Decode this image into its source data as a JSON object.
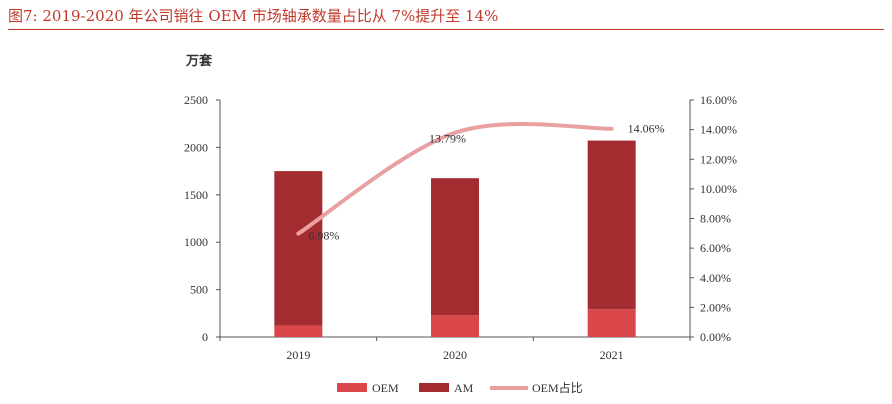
{
  "caption": "图7:   2019-2020 年公司销往 OEM 市场轴承数量占比从 7%提升至 14%",
  "unit_label": "万套",
  "colors": {
    "oem": "#d9474a",
    "am": "#a32c30",
    "share": "#e8a0a0",
    "caption": "#c0392b"
  },
  "chart_data": {
    "type": "bar",
    "stacked": true,
    "categories": [
      "2019",
      "2020",
      "2021"
    ],
    "series": [
      {
        "name": "OEM",
        "axis": "left",
        "values": [
          122,
          231,
          292
        ]
      },
      {
        "name": "AM",
        "axis": "left",
        "values": [
          1628,
          1444,
          1780
        ]
      },
      {
        "name": "OEM占比",
        "axis": "right",
        "type": "line",
        "values": [
          6.98,
          13.79,
          14.06
        ],
        "labels": [
          "6.98%",
          "13.79%",
          "14.06%"
        ]
      }
    ],
    "ylim_left": [
      0,
      2500
    ],
    "yticks_left": [
      "0",
      "500",
      "1000",
      "1500",
      "2000",
      "2500"
    ],
    "ylim_right": [
      0,
      16
    ],
    "yticks_right": [
      "0.00%",
      "2.00%",
      "4.00%",
      "6.00%",
      "8.00%",
      "10.00%",
      "12.00%",
      "14.00%",
      "16.00%"
    ],
    "legend_position": "bottom"
  }
}
